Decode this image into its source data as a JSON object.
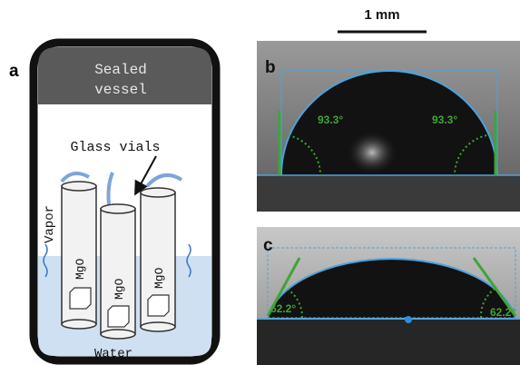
{
  "panel_a": {
    "label": "a",
    "vessel_label": [
      "Sealed",
      "vessel"
    ],
    "vials_label": "Glass vials",
    "vapor_label": "Vapor",
    "vial_labels": [
      "MgO",
      "MgO",
      "MgO"
    ],
    "water_label": "Water"
  },
  "scale_bar": "1 mm",
  "panel_b": {
    "label": "b",
    "angles": [
      "93.3°",
      "93.3°"
    ]
  },
  "panel_c": {
    "label": "c",
    "angles": [
      "62.2°",
      "62.2°"
    ]
  }
}
